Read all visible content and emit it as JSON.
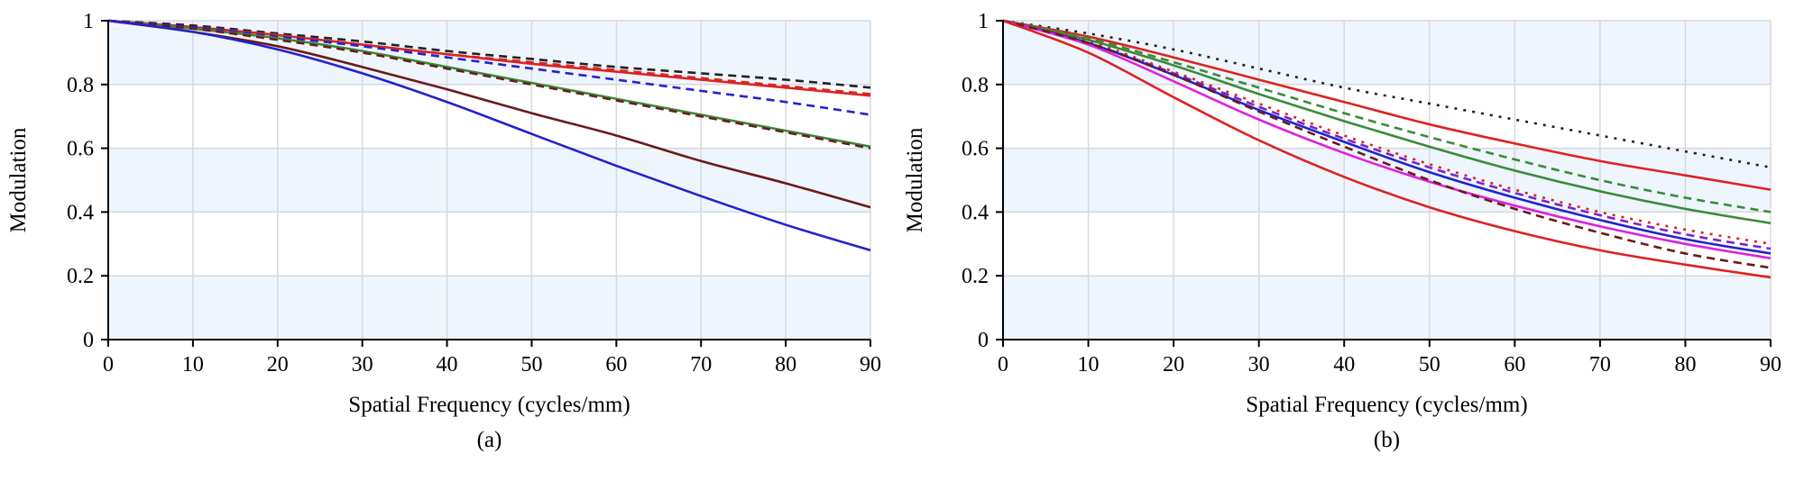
{
  "chart_data": [
    {
      "type": "line",
      "panel_label": "(a)",
      "xlabel": "Spatial Frequency (cycles/mm)",
      "ylabel": "Modulation",
      "xlim": [
        0,
        90
      ],
      "ylim": [
        0,
        1
      ],
      "x_ticks": [
        0,
        10,
        20,
        30,
        40,
        50,
        60,
        70,
        80,
        90
      ],
      "y_ticks": [
        0,
        0.2,
        0.4,
        0.6,
        0.8,
        1
      ],
      "y_tick_labels": [
        "0",
        "0.2",
        "0.4",
        "0.6",
        "0.8",
        "1"
      ],
      "x": [
        0,
        10,
        20,
        30,
        40,
        50,
        60,
        70,
        80,
        90
      ],
      "series": [
        {
          "name": "black dashed",
          "color": "#222222",
          "dash": "dashed",
          "values": [
            1,
            0.985,
            0.96,
            0.935,
            0.905,
            0.88,
            0.855,
            0.835,
            0.815,
            0.79
          ]
        },
        {
          "name": "red solid",
          "color": "#dd2222",
          "dash": "solid",
          "values": [
            1,
            0.98,
            0.955,
            0.925,
            0.895,
            0.865,
            0.84,
            0.815,
            0.79,
            0.765
          ]
        },
        {
          "name": "red dashed",
          "color": "#dd2222",
          "dash": "dashed",
          "values": [
            1,
            0.98,
            0.955,
            0.925,
            0.895,
            0.87,
            0.845,
            0.82,
            0.795,
            0.77
          ]
        },
        {
          "name": "blue dashed",
          "color": "#2222cc",
          "dash": "dashed",
          "values": [
            1,
            0.98,
            0.95,
            0.92,
            0.885,
            0.85,
            0.815,
            0.78,
            0.745,
            0.705
          ]
        },
        {
          "name": "green solid",
          "color": "#3a8a3a",
          "dash": "solid",
          "values": [
            1,
            0.975,
            0.945,
            0.905,
            0.855,
            0.805,
            0.755,
            0.705,
            0.655,
            0.605
          ]
        },
        {
          "name": "dark red dashed",
          "color": "#6b1a1a",
          "dash": "dashed",
          "values": [
            1,
            0.975,
            0.94,
            0.9,
            0.85,
            0.8,
            0.75,
            0.7,
            0.65,
            0.6
          ]
        },
        {
          "name": "dark red solid",
          "color": "#6b1a1a",
          "dash": "solid",
          "values": [
            1,
            0.965,
            0.92,
            0.855,
            0.785,
            0.71,
            0.64,
            0.56,
            0.49,
            0.415
          ]
        },
        {
          "name": "blue solid",
          "color": "#2222cc",
          "dash": "solid",
          "values": [
            1,
            0.965,
            0.91,
            0.835,
            0.745,
            0.645,
            0.545,
            0.45,
            0.36,
            0.28
          ]
        }
      ]
    },
    {
      "type": "line",
      "panel_label": "(b)",
      "xlabel": "Spatial Frequency (cycles/mm)",
      "ylabel": "Modulation",
      "xlim": [
        0,
        90
      ],
      "ylim": [
        0,
        1
      ],
      "x_ticks": [
        0,
        10,
        20,
        30,
        40,
        50,
        60,
        70,
        80,
        90
      ],
      "y_ticks": [
        0,
        0.2,
        0.4,
        0.6,
        0.8,
        1
      ],
      "y_tick_labels": [
        "0",
        "0.2",
        "0.4",
        "0.6",
        "0.8",
        "1"
      ],
      "x": [
        0,
        10,
        20,
        30,
        40,
        50,
        60,
        70,
        80,
        90
      ],
      "series": [
        {
          "name": "black dotted",
          "color": "#222222",
          "dash": "dotted",
          "values": [
            1,
            0.96,
            0.91,
            0.85,
            0.79,
            0.74,
            0.69,
            0.64,
            0.59,
            0.54
          ]
        },
        {
          "name": "red solid upper",
          "color": "#dd2222",
          "dash": "solid",
          "values": [
            1,
            0.95,
            0.885,
            0.815,
            0.745,
            0.675,
            0.615,
            0.56,
            0.515,
            0.47
          ]
        },
        {
          "name": "green dashed",
          "color": "#3a8a3a",
          "dash": "dashed",
          "values": [
            1,
            0.945,
            0.87,
            0.79,
            0.71,
            0.635,
            0.565,
            0.5,
            0.445,
            0.4
          ]
        },
        {
          "name": "green solid",
          "color": "#3a8a3a",
          "dash": "solid",
          "values": [
            1,
            0.94,
            0.86,
            0.77,
            0.685,
            0.605,
            0.53,
            0.465,
            0.41,
            0.365
          ]
        },
        {
          "name": "red dotted",
          "color": "#dd2222",
          "dash": "dotted",
          "values": [
            1,
            0.935,
            0.84,
            0.74,
            0.64,
            0.55,
            0.47,
            0.4,
            0.345,
            0.3
          ]
        },
        {
          "name": "purple dashed",
          "color": "#7a22cc",
          "dash": "dashed",
          "values": [
            1,
            0.93,
            0.835,
            0.73,
            0.63,
            0.54,
            0.46,
            0.39,
            0.33,
            0.285
          ]
        },
        {
          "name": "blue solid",
          "color": "#2222cc",
          "dash": "solid",
          "values": [
            1,
            0.93,
            0.83,
            0.72,
            0.62,
            0.525,
            0.445,
            0.375,
            0.315,
            0.27
          ]
        },
        {
          "name": "magenta solid",
          "color": "#dd22dd",
          "dash": "solid",
          "values": [
            1,
            0.925,
            0.81,
            0.69,
            0.585,
            0.495,
            0.42,
            0.355,
            0.3,
            0.255
          ]
        },
        {
          "name": "dark red dashed",
          "color": "#6b1a1a",
          "dash": "dashed",
          "values": [
            1,
            0.93,
            0.83,
            0.715,
            0.605,
            0.5,
            0.41,
            0.335,
            0.27,
            0.225
          ]
        },
        {
          "name": "red solid lower",
          "color": "#dd2222",
          "dash": "solid",
          "values": [
            1,
            0.9,
            0.76,
            0.625,
            0.51,
            0.415,
            0.34,
            0.28,
            0.235,
            0.195
          ]
        }
      ]
    }
  ],
  "colors": {
    "band_light": "#eef5fc",
    "band_white": "#ffffff",
    "grid": "#d5d8dd",
    "axis": "#000000"
  }
}
